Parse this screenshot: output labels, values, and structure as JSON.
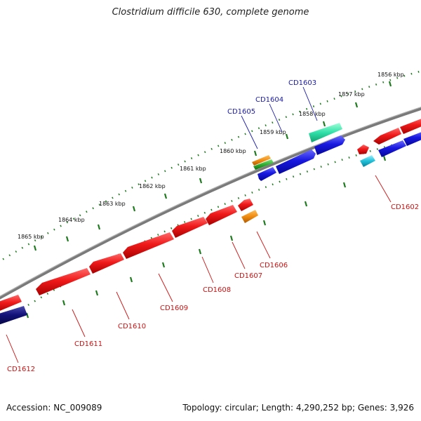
{
  "title": "Clostridium difficile 630, complete genome",
  "footer": {
    "accession": "Accession: NC_009089",
    "summary": "Topology: circular; Length: 4,290,252 bp; Genes: 3,926"
  },
  "colors": {
    "backbone": "#7a7a7a",
    "tick": "#1e7a1e",
    "label_forward": "#1a1aa8",
    "label_reverse": "#cc1111",
    "red": "#e01010",
    "blue": "#1010d8",
    "navy": "#0c0c6e",
    "orange": "#f08c10",
    "green": "#30b030",
    "teal": "#20d8a0",
    "cyan": "#20c0d8"
  },
  "kbp_labels": [
    "1856 kbp",
    "1857 kbp",
    "1858 kbp",
    "1859 kbp",
    "1860 kbp",
    "1861 kbp",
    "1862 kbp",
    "1863 kbp",
    "1864 kbp",
    "1865 kbp"
  ],
  "gene_labels_forward": [
    "CD1603",
    "CD1604",
    "CD1605"
  ],
  "gene_labels_reverse": [
    "CD1602",
    "CD1606",
    "CD1607",
    "CD1608",
    "CD1609",
    "CD1610",
    "CD1611",
    "CD1612"
  ]
}
